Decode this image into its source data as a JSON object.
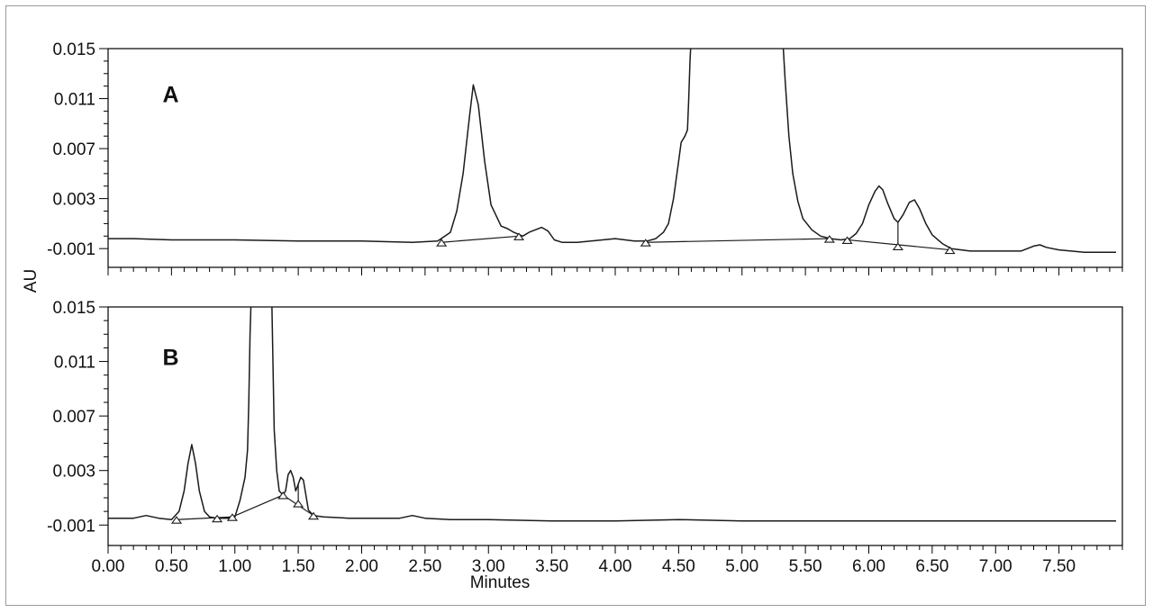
{
  "chart_data": {
    "type": "line",
    "x_axis": {
      "label": "Minutes",
      "range": [
        0,
        8.0
      ],
      "ticks": [
        0,
        0.5,
        1.0,
        1.5,
        2.0,
        2.5,
        3.0,
        3.5,
        4.0,
        4.5,
        5.0,
        5.5,
        6.0,
        6.5,
        7.0,
        7.5
      ],
      "tick_labels": [
        "0.00",
        "0.50",
        "1.00",
        "1.50",
        "2.00",
        "2.50",
        "3.00",
        "3.50",
        "4.00",
        "4.50",
        "5.00",
        "5.50",
        "6.00",
        "6.50",
        "7.00",
        "7.50"
      ]
    },
    "y_axis": {
      "label": "AU",
      "range": [
        -0.0025,
        0.015
      ],
      "ticks": [
        -0.001,
        0.003,
        0.007,
        0.011,
        0.015
      ],
      "tick_labels": [
        "-0.001",
        "0.003",
        "0.007",
        "0.011",
        "0.015"
      ]
    },
    "grid": false,
    "panels": [
      {
        "label": "A",
        "series": [
          {
            "x": [
              0.0,
              0.2,
              0.5,
              1.0,
              1.5,
              2.0,
              2.4,
              2.6,
              2.7,
              2.75,
              2.8,
              2.85,
              2.88,
              2.92,
              2.97,
              3.02,
              3.1,
              3.15,
              3.2,
              3.27,
              3.32,
              3.37,
              3.42,
              3.47,
              3.52,
              3.58,
              3.7,
              3.9,
              4.0,
              4.15,
              4.25,
              4.32,
              4.38,
              4.42,
              4.46,
              4.5,
              4.52,
              4.55,
              4.57,
              4.58,
              4.59,
              4.6,
              4.61,
              5.32,
              5.34,
              5.37,
              5.4,
              5.44,
              5.48,
              5.55,
              5.62,
              5.7,
              5.78,
              5.85,
              5.9,
              5.95,
              6.0,
              6.05,
              6.08,
              6.11,
              6.15,
              6.2,
              6.23,
              6.27,
              6.32,
              6.36,
              6.4,
              6.45,
              6.5,
              6.58,
              6.65,
              6.8,
              7.0,
              7.2,
              7.3,
              7.35,
              7.4,
              7.5,
              7.7,
              7.95
            ],
            "y": [
              -0.0002,
              -0.0002,
              -0.0003,
              -0.0003,
              -0.0004,
              -0.0004,
              -0.0005,
              -0.0004,
              0.0003,
              0.002,
              0.005,
              0.0095,
              0.0121,
              0.0105,
              0.006,
              0.0025,
              0.0008,
              0.0006,
              0.0003,
              0.0,
              0.0003,
              0.0005,
              0.0007,
              0.0004,
              -0.0003,
              -0.0005,
              -0.0005,
              -0.0003,
              -0.0002,
              -0.0004,
              -0.0004,
              -0.0002,
              0.0003,
              0.001,
              0.003,
              0.006,
              0.0075,
              0.008,
              0.0085,
              0.011,
              0.014,
              0.016,
              0.016,
              0.016,
              0.0125,
              0.008,
              0.005,
              0.0028,
              0.0014,
              0.0005,
              0.0,
              -0.0002,
              -0.0003,
              -0.0002,
              0.0002,
              0.001,
              0.0025,
              0.0036,
              0.004,
              0.0037,
              0.0026,
              0.0014,
              0.0011,
              0.0017,
              0.0027,
              0.0029,
              0.0022,
              0.001,
              0.0001,
              -0.0006,
              -0.001,
              -0.0012,
              -0.0012,
              -0.0012,
              -0.0008,
              -0.0007,
              -0.0009,
              -0.0011,
              -0.0013,
              -0.0013
            ]
          }
        ],
        "baselines": [
          {
            "x": [
              2.63,
              3.24
            ],
            "y": [
              -0.0005,
              0.0
            ]
          },
          {
            "x": [
              4.24,
              5.69
            ],
            "y": [
              -0.0005,
              -0.0002
            ]
          },
          {
            "x": [
              5.83,
              6.64
            ],
            "y": [
              -0.0003,
              -0.0011
            ]
          }
        ],
        "drop_lines": [
          {
            "x": 6.23,
            "y": [
              -0.0008,
              0.0011
            ]
          }
        ],
        "markers": [
          {
            "x": 2.63,
            "y": -0.0005
          },
          {
            "x": 3.24,
            "y": 0.0
          },
          {
            "x": 4.24,
            "y": -0.0005
          },
          {
            "x": 5.69,
            "y": -0.0002
          },
          {
            "x": 5.83,
            "y": -0.0003
          },
          {
            "x": 6.23,
            "y": -0.0008
          },
          {
            "x": 6.64,
            "y": -0.0011
          }
        ]
      },
      {
        "label": "B",
        "series": [
          {
            "x": [
              0.0,
              0.2,
              0.3,
              0.4,
              0.5,
              0.56,
              0.6,
              0.63,
              0.66,
              0.69,
              0.72,
              0.76,
              0.8,
              0.86,
              0.95,
              1.0,
              1.04,
              1.08,
              1.1,
              1.11,
              1.12,
              1.13,
              1.14,
              1.29,
              1.3,
              1.31,
              1.33,
              1.35,
              1.38,
              1.4,
              1.42,
              1.44,
              1.46,
              1.48,
              1.5,
              1.52,
              1.54,
              1.56,
              1.58,
              1.62,
              1.7,
              1.9,
              2.1,
              2.3,
              2.4,
              2.5,
              2.7,
              3.0,
              3.5,
              4.0,
              4.5,
              5.0,
              5.5,
              6.0,
              6.5,
              7.0,
              7.5,
              7.95
            ],
            "y": [
              -0.0005,
              -0.0005,
              -0.0003,
              -0.0005,
              -0.0006,
              0.0,
              0.0015,
              0.0035,
              0.0049,
              0.0035,
              0.0015,
              0.0,
              -0.0004,
              -0.0005,
              -0.0005,
              -0.0004,
              0.0008,
              0.0025,
              0.0045,
              0.008,
              0.013,
              0.016,
              0.016,
              0.016,
              0.011,
              0.006,
              0.003,
              0.0015,
              0.0012,
              0.0015,
              0.0027,
              0.003,
              0.0025,
              0.0015,
              0.002,
              0.0025,
              0.0023,
              0.0012,
              0.0001,
              -0.0003,
              -0.0004,
              -0.0005,
              -0.0005,
              -0.0005,
              -0.0003,
              -0.0005,
              -0.0006,
              -0.0006,
              -0.0007,
              -0.0007,
              -0.0006,
              -0.0007,
              -0.0007,
              -0.0007,
              -0.0007,
              -0.0007,
              -0.0007,
              -0.0007
            ]
          }
        ],
        "baselines": [
          {
            "x": [
              0.54,
              0.98
            ],
            "y": [
              -0.0006,
              -0.0004
            ]
          },
          {
            "x": [
              0.98,
              1.38
            ],
            "y": [
              -0.0004,
              0.0012
            ]
          },
          {
            "x": [
              1.38,
              1.62
            ],
            "y": [
              0.0012,
              -0.0003
            ]
          }
        ],
        "drop_lines": [
          {
            "x": 1.5,
            "y": [
              0.0006,
              0.002
            ]
          }
        ],
        "markers": [
          {
            "x": 0.54,
            "y": -0.0006
          },
          {
            "x": 0.86,
            "y": -0.0005
          },
          {
            "x": 0.98,
            "y": -0.0004
          },
          {
            "x": 1.38,
            "y": 0.0012
          },
          {
            "x": 1.5,
            "y": 0.0006
          },
          {
            "x": 1.62,
            "y": -0.0003
          }
        ]
      }
    ]
  },
  "colors": {
    "trace": "#1a1a1a",
    "frame": "#9a9a9a",
    "axis": "#000000"
  }
}
